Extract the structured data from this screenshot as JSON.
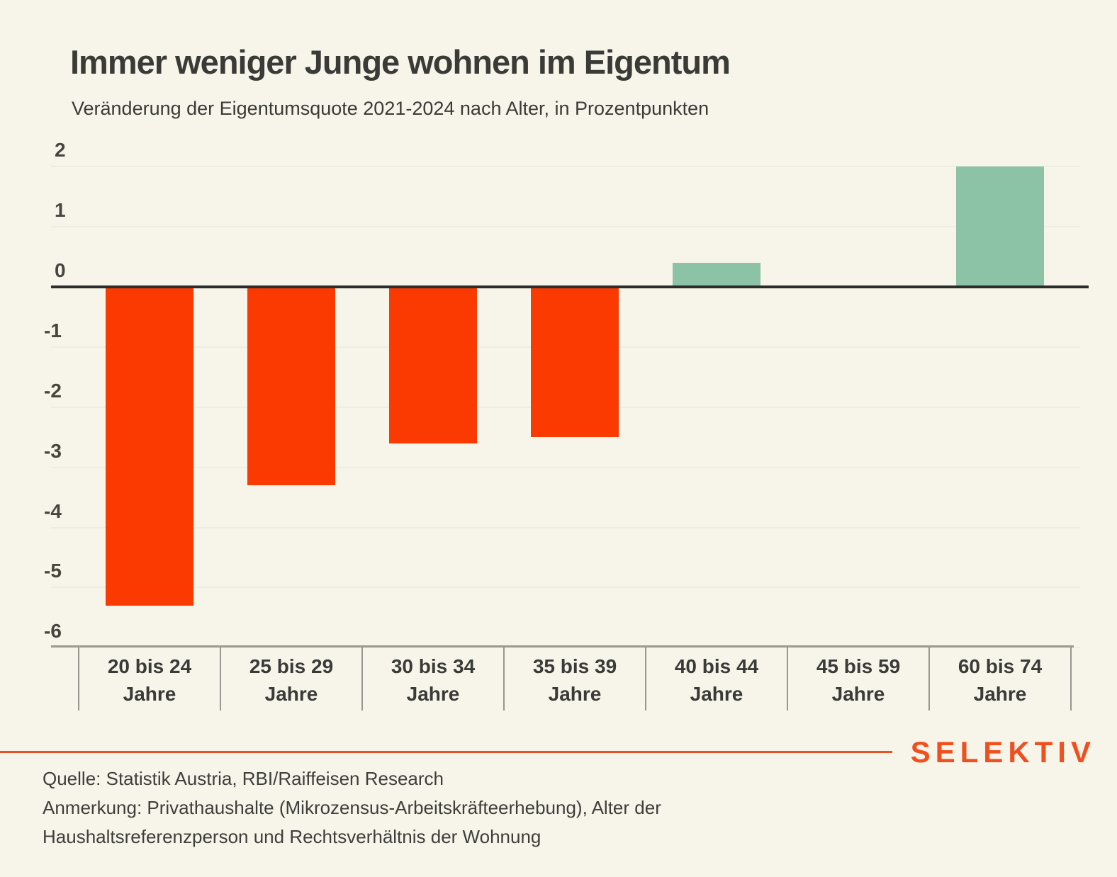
{
  "title": "Immer weniger Junge wohnen im Eigentum",
  "subtitle": "Veränderung der Eigentumsquote 2021-2024 nach Alter, in Prozentpunkten",
  "chart_data": {
    "type": "bar",
    "categories": [
      "20 bis 24",
      "25 bis 29",
      "30 bis 34",
      "35 bis 39",
      "40 bis 44",
      "45 bis 59",
      "60 bis 74"
    ],
    "category_suffix": "Jahre",
    "values": [
      -5.3,
      -3.3,
      -2.6,
      -2.5,
      0.4,
      0,
      2
    ],
    "yticks": [
      2,
      1,
      0,
      -1,
      -2,
      -3,
      -4,
      -5,
      -6
    ],
    "ylim": [
      -6,
      2
    ],
    "grid": true,
    "legend": "none",
    "colors": {
      "negative": "#fb3a02",
      "positive": "#8cc2a6",
      "background": "#f7f5ea",
      "zero_line": "#2a2d2b",
      "gridline": "#efede2",
      "axis": "#9b9991"
    }
  },
  "footer": {
    "brand": "SELEKTIV",
    "source": "Quelle: Statistik Austria, RBI/Raiffeisen Research",
    "note_line1": "Anmerkung: Privathaushalte (Mikrozensus-Arbeitskräfteerhebung), Alter der",
    "note_line2": "Haushaltsreferenzperson und Rechtsverhältnis der Wohnung"
  }
}
